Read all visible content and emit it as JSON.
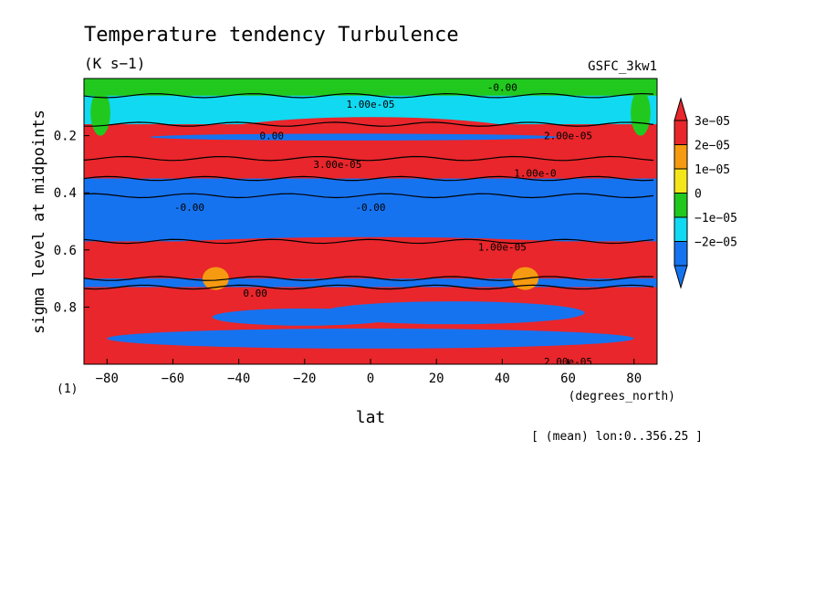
{
  "chart_data": {
    "type": "heatmap",
    "title": "Temperature tendency Turbulence",
    "subtitle": "(K s−1)",
    "source": "GSFC_3kw1",
    "xlabel": "lat",
    "xunits": "(degrees_north)",
    "ylabel": "sigma level at midpoints",
    "yunits": "(1)",
    "footnote": "[ (mean) lon:0..356.25 ]",
    "xlim": [
      -87,
      87
    ],
    "ylim": [
      0,
      1
    ],
    "y_inverted": true,
    "xticks": [
      -80,
      -60,
      -40,
      -20,
      0,
      20,
      40,
      60,
      80
    ],
    "xtick_labels": [
      "−80",
      "−60",
      "−40",
      "−20",
      "0",
      "20",
      "40",
      "60",
      "80"
    ],
    "yticks": [
      0.2,
      0.4,
      0.6,
      0.8
    ],
    "ytick_labels": [
      "0.2",
      "0.4",
      "0.6",
      "0.8"
    ],
    "colorbar": {
      "levels": [
        "3e−05",
        "2e−05",
        "1e−05",
        "0",
        "−1e−05",
        "−2e−05"
      ],
      "colors": [
        "#e8262b",
        "#f59a11",
        "#f5e61c",
        "#21c91f",
        "#11d9f2",
        "#1673f0",
        "#1673f0"
      ]
    },
    "bands": [
      {
        "y0": 0.0,
        "y1": 0.06,
        "color": "#21c91f",
        "value": "0"
      },
      {
        "y0": 0.06,
        "y1": 0.16,
        "color": "#11d9f2",
        "value": "-1e-05"
      },
      {
        "y0": 0.16,
        "y1": 0.28,
        "color": "#e8262b",
        "value": "3e-05"
      },
      {
        "y0": 0.28,
        "y1": 0.35,
        "color": "#e8262b",
        "value": "3e-05"
      },
      {
        "y0": 0.35,
        "y1": 0.41,
        "color": "#1673f0",
        "value": "-2e-05"
      },
      {
        "y0": 0.41,
        "y1": 0.57,
        "color": "#1673f0",
        "value": "-2e-05"
      },
      {
        "y0": 0.57,
        "y1": 0.7,
        "color": "#e8262b",
        "value": "3e-05"
      },
      {
        "y0": 0.7,
        "y1": 0.73,
        "color": "#1673f0",
        "value": "-2e-05"
      },
      {
        "y0": 0.73,
        "y1": 1.0,
        "color": "#e8262b",
        "value": "3e-05"
      }
    ],
    "contour_labels": [
      "-0.00",
      "1.00e-05",
      "0.00",
      "2.00e-05",
      "3.00e-05",
      "1.00e-0",
      "-0.00"
    ]
  }
}
